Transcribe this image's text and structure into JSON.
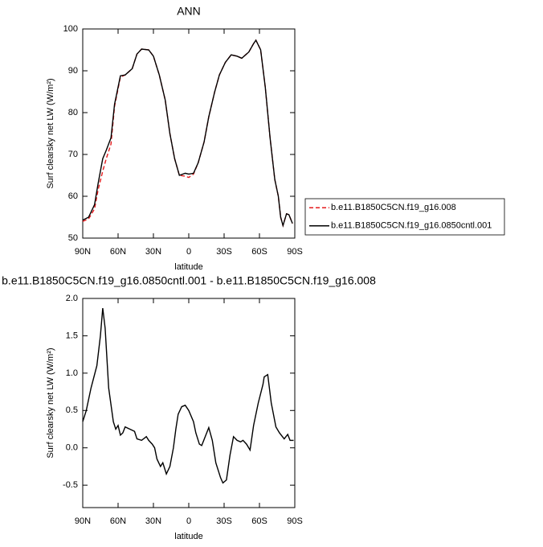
{
  "chart_data": [
    {
      "type": "line",
      "title": "ANN",
      "xlabel": "latitude",
      "ylabel": "Surf clearsky net LW (W/m²)",
      "x": [
        90,
        85,
        80,
        77,
        73,
        70,
        66,
        63,
        58,
        54,
        48,
        44,
        40,
        34,
        30,
        25,
        20,
        16,
        12,
        8,
        3,
        0,
        -4,
        -8,
        -13,
        -17,
        -22,
        -26,
        -31,
        -36,
        -41,
        -45,
        -51,
        -55,
        -57,
        -61,
        -65,
        -69,
        -73,
        -76,
        -78,
        -80,
        -83,
        -85,
        -88
      ],
      "series": [
        {
          "name": "b.e11.B1850C5CN.f19_g16.008",
          "color": "#e41a1c",
          "dash": true,
          "values": [
            54.0,
            54.6,
            57,
            61.5,
            66,
            69,
            72.5,
            81.5,
            88.5,
            89,
            90.5,
            94,
            95.2,
            95,
            93.5,
            89,
            83,
            75,
            69,
            65,
            64.8,
            64.5,
            65.3,
            68,
            73,
            79,
            85,
            89,
            92,
            93.8,
            93.5,
            93,
            94.5,
            96.5,
            97.3,
            95,
            86,
            74,
            64,
            60,
            55,
            53,
            55.8,
            55.6,
            53.5
          ]
        },
        {
          "name": "b.e11.B1850C5CN.f19_g16.0850cntl.001",
          "color": "#000000",
          "dash": false,
          "values": [
            54.3,
            55,
            58,
            63,
            69,
            71,
            74,
            82,
            88.8,
            89,
            90.5,
            94,
            95.2,
            95,
            93.5,
            89,
            83,
            75,
            69,
            65,
            65.5,
            65.3,
            65.5,
            68,
            73,
            79,
            85,
            89,
            92,
            93.8,
            93.5,
            93,
            94.5,
            96.5,
            97.3,
            95,
            86,
            74,
            64,
            60,
            55,
            53,
            55.8,
            55.6,
            53.5
          ]
        }
      ],
      "xlim": [
        90,
        -90
      ],
      "xticks": [
        {
          "value": 90,
          "label": "90N"
        },
        {
          "value": 60,
          "label": "60N"
        },
        {
          "value": 30,
          "label": "30N"
        },
        0,
        {
          "value": -30,
          "label": "30S"
        },
        {
          "value": -60,
          "label": "60S"
        },
        {
          "value": -90,
          "label": "90S"
        }
      ],
      "ylim": [
        50,
        100
      ],
      "yticks": [
        50,
        60,
        70,
        80,
        90,
        100
      ],
      "legend": "right"
    },
    {
      "type": "line",
      "title": "b.e11.B1850C5CN.f19_g16.0850cntl.001 - b.e11.B1850C5CN.f19_g16.008",
      "xlabel": "latitude",
      "ylabel": "Surf clearsky net LW (W/m²)",
      "x": [
        90,
        87,
        83,
        78,
        75,
        73,
        71,
        68,
        64,
        62,
        60,
        58,
        56,
        54,
        50,
        46,
        44,
        40,
        36,
        34,
        31,
        29,
        27,
        24,
        22,
        19,
        16,
        13,
        11,
        9,
        6,
        3,
        0,
        -4,
        -6,
        -9,
        -11,
        -14,
        -17,
        -20,
        -23,
        -27,
        -29,
        -32,
        -35,
        -38,
        -41,
        -44,
        -46,
        -49,
        -52,
        -55,
        -59,
        -63,
        -64,
        -67,
        -70,
        -74,
        -77,
        -81,
        -84,
        -86,
        -89
      ],
      "series": [
        {
          "color": "#000000",
          "dash": false,
          "values": [
            0.35,
            0.5,
            0.8,
            1.1,
            1.5,
            1.87,
            1.6,
            0.8,
            0.35,
            0.25,
            0.3,
            0.17,
            0.2,
            0.28,
            0.25,
            0.22,
            0.12,
            0.1,
            0.15,
            0.1,
            0.05,
            0,
            -0.15,
            -0.25,
            -0.2,
            -0.35,
            -0.25,
            0,
            0.25,
            0.45,
            0.55,
            0.57,
            0.5,
            0.35,
            0.2,
            0.05,
            0.03,
            0.15,
            0.27,
            0.1,
            -0.2,
            -0.4,
            -0.47,
            -0.43,
            -0.1,
            0.15,
            0.1,
            0.08,
            0.1,
            0.05,
            -0.03,
            0.3,
            0.6,
            0.85,
            0.95,
            0.98,
            0.6,
            0.28,
            0.2,
            0.12,
            0.18,
            0.1,
            0.1
          ]
        }
      ],
      "xlim": [
        90,
        -90
      ],
      "xticks": [
        {
          "value": 90,
          "label": "90N"
        },
        {
          "value": 60,
          "label": "60N"
        },
        {
          "value": 30,
          "label": "30N"
        },
        0,
        {
          "value": -30,
          "label": "30S"
        },
        {
          "value": -60,
          "label": "60S"
        },
        {
          "value": -90,
          "label": "90S"
        }
      ],
      "ylim": [
        -0.8,
        2.0
      ],
      "yticks": [
        {
          "value": 2.0,
          "label": "2.0"
        },
        1.5,
        {
          "value": 1.0,
          "label": "1.0"
        },
        0.5,
        {
          "value": 0.0,
          "label": "0.0"
        },
        -0.5
      ]
    }
  ]
}
